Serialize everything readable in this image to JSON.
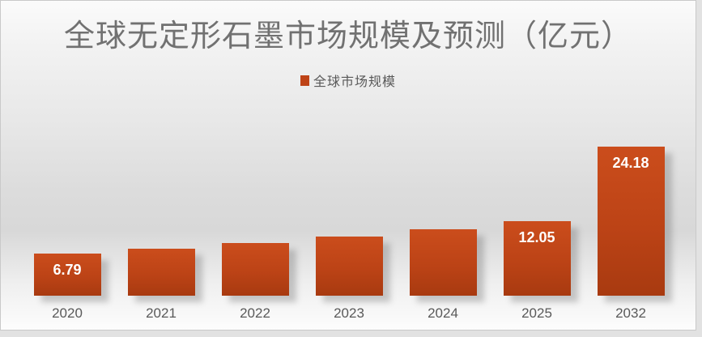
{
  "chart_data": {
    "type": "bar",
    "title": "全球无定形石墨市场规模及预测（亿元）",
    "categories": [
      "2020",
      "2021",
      "2022",
      "2023",
      "2024",
      "2025",
      "2032"
    ],
    "series": [
      {
        "name": "全球市场规模",
        "values": [
          6.79,
          7.6,
          8.6,
          9.6,
          10.75,
          12.05,
          24.18
        ]
      }
    ],
    "data_labels": [
      "6.79",
      null,
      null,
      null,
      null,
      "12.05",
      "24.18"
    ],
    "xlabel": "",
    "ylabel": "",
    "ylim": [
      0,
      26
    ],
    "grid": false,
    "axes_visible": false,
    "legend_position": "top-center",
    "colors": {
      "bar_top": "#cb4d1c",
      "bar_mid": "#bc4316",
      "bar_bottom": "#a83a10",
      "legend_marker": "#be4316",
      "data_label_text": "#ffffff",
      "axis_text": "#595959",
      "title_text": "#717171"
    }
  }
}
